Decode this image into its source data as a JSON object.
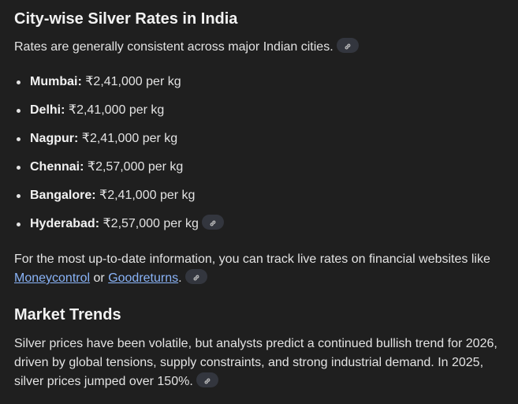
{
  "section1": {
    "title": "City-wise Silver Rates in India",
    "intro": "Rates are generally consistent across major Indian cities.",
    "cities": [
      {
        "name": "Mumbai:",
        "rate": "₹2,41,000 per kg"
      },
      {
        "name": "Delhi:",
        "rate": "₹2,41,000 per kg"
      },
      {
        "name": "Nagpur:",
        "rate": "₹2,41,000 per kg"
      },
      {
        "name": "Chennai:",
        "rate": "₹2,57,000 per kg"
      },
      {
        "name": "Bangalore:",
        "rate": "₹2,41,000 per kg"
      },
      {
        "name": "Hyderabad:",
        "rate": "₹2,57,000 per kg"
      }
    ],
    "info_text": "For the most up-to-date information, you can track live rates on financial websites like",
    "link1": "Moneycontrol",
    "or": "or",
    "link2": "Goodreturns",
    "period": "."
  },
  "section2": {
    "title": "Market Trends",
    "text": "Silver prices have been volatile, but analysts predict a continued bullish trend for 2026, driven by global tensions, supply constraints, and strong industrial demand. In 2025, silver prices jumped over 150%."
  },
  "icons": {
    "citation": "link-icon"
  },
  "colors": {
    "background": "#1f1f1f",
    "link": "#8ab4f8",
    "chip": "#33363e"
  }
}
